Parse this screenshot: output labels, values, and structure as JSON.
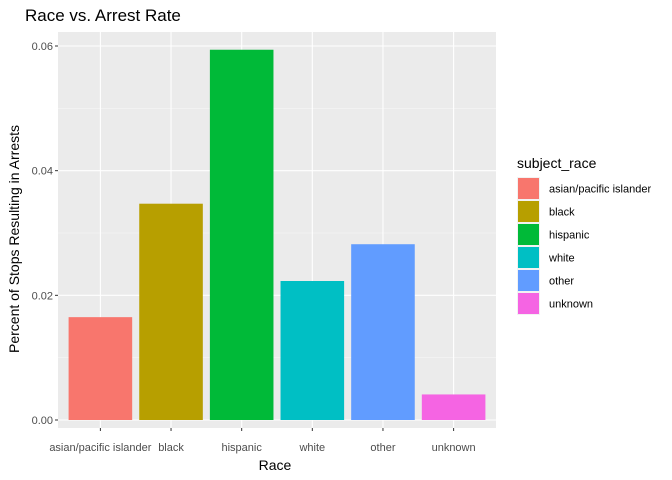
{
  "chart_data": {
    "type": "bar",
    "title": "Race vs. Arrest Rate",
    "xlabel": "Race",
    "ylabel": "Percent of Stops Resulting in Arrests",
    "categories": [
      "asian/pacific islander",
      "black",
      "hispanic",
      "white",
      "other",
      "unknown"
    ],
    "values": [
      0.0165,
      0.0347,
      0.0594,
      0.0223,
      0.0282,
      0.0041
    ],
    "colors": [
      "#F8766D",
      "#B79F00",
      "#00BA38",
      "#00BFC4",
      "#619CFF",
      "#F564E3"
    ],
    "ylim": [
      0,
      0.063
    ],
    "yticks": [
      0.0,
      0.02,
      0.04,
      0.06
    ],
    "ytick_labels": [
      "0.00",
      "0.02",
      "0.04",
      "0.06"
    ],
    "grid": true,
    "legend": {
      "title": "subject_race",
      "placement": "right",
      "entries": [
        "asian/pacific islander",
        "black",
        "hispanic",
        "white",
        "other",
        "unknown"
      ]
    }
  }
}
